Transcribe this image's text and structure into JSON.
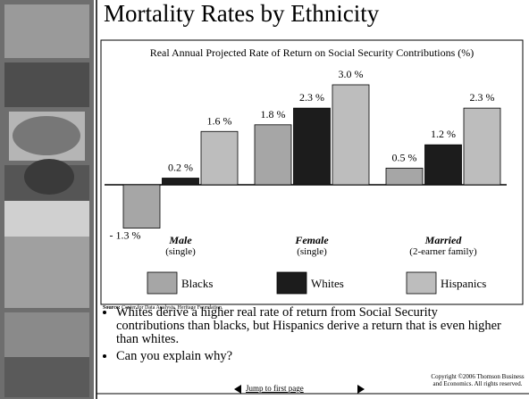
{
  "title": "Mortality Rates by Ethnicity",
  "chart_data": {
    "type": "bar",
    "title": "Real Annual Projected Rate of Return on Social Security Contributions (%)",
    "categories": [
      "Male",
      "Female",
      "Married"
    ],
    "category_sublabels": [
      "(single)",
      "(single)",
      "(2-earner family)"
    ],
    "series": [
      {
        "name": "Blacks",
        "color": "#a6a6a6",
        "values": [
          -1.3,
          1.8,
          0.5
        ],
        "value_labels": [
          "- 1.3 %",
          "1.8 %",
          "0.5 %"
        ]
      },
      {
        "name": "Whites",
        "color": "#1c1c1c",
        "values": [
          0.2,
          2.3,
          1.2
        ],
        "value_labels": [
          "0.2 %",
          "2.3 %",
          "1.2 %"
        ]
      },
      {
        "name": "Hispanics",
        "color": "#bdbdbd",
        "values": [
          1.6,
          3.0,
          2.3
        ],
        "value_labels": [
          "1.6 %",
          "3.0 %",
          "2.3 %"
        ]
      }
    ]
  },
  "source_label": "Source:",
  "source": "Center for Data Analysis, Heritage Foundation.",
  "bullets": [
    "Whites derive a higher real rate of return from Social Security contributions than blacks, but Hispanics derive a return that is even higher than whites.",
    "Can you explain why?"
  ],
  "nav_link": "Jump to first page",
  "copyright": "Copyright ©2006  Thomson Business and Economics. All rights reserved."
}
